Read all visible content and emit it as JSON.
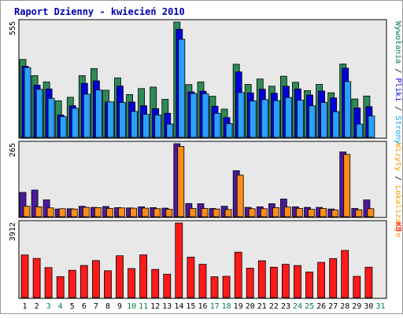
{
  "chart_data": {
    "type": "bar",
    "title": "Raport Dzienny -  kwiecień 2010",
    "categories": [
      "1",
      "2",
      "3",
      "4",
      "5",
      "6",
      "7",
      "8",
      "9",
      "10",
      "11",
      "12",
      "13",
      "14",
      "15",
      "16",
      "17",
      "18",
      "19",
      "20",
      "21",
      "22",
      "23",
      "24",
      "25",
      "26",
      "27",
      "28",
      "29",
      "30",
      "31"
    ],
    "weekend_days": [
      "3",
      "4",
      "10",
      "11",
      "17",
      "18",
      "24",
      "25",
      "31"
    ],
    "panels": [
      {
        "id": "top",
        "ymax_label": "555",
        "ylim": [
          0,
          555
        ],
        "legend": [
          {
            "text": "Wywołania",
            "color": "#008040"
          },
          {
            "text": " / ",
            "color": "#000000"
          },
          {
            "text": "Pliki",
            "color": "#0000ff"
          },
          {
            "text": " / ",
            "color": "#000000"
          },
          {
            "text": "Strony",
            "color": "#00a0ff"
          }
        ],
        "series": [
          {
            "name": "Wywołania",
            "color": "#2e8b57",
            "values": [
              375,
              297,
              267,
              176,
              193,
              297,
              331,
              227,
              286,
              206,
              235,
              242,
              183,
              555,
              254,
              267,
              198,
              136,
              352,
              255,
              281,
              246,
              294,
              265,
              225,
              255,
              215,
              353,
              185,
              199,
              0
            ]
          },
          {
            "name": "Pliki",
            "color": "#0000dd",
            "values": [
              342,
              251,
              233,
              108,
              152,
              260,
              272,
              170,
              247,
              170,
              152,
              138,
              116,
              520,
              219,
              222,
              150,
              95,
              315,
              214,
              232,
              212,
              246,
              233,
              204,
              223,
              190,
              333,
              142,
              148,
              0
            ]
          },
          {
            "name": "Strony",
            "color": "#2aa0ff",
            "values": [
              336,
              231,
              188,
              100,
              140,
              208,
              228,
              171,
              168,
              125,
              111,
              108,
              64,
              472,
              211,
              210,
              116,
              66,
              216,
              175,
              182,
              177,
              192,
              179,
              152,
              168,
              124,
              269,
              64,
              103,
              0
            ]
          }
        ]
      },
      {
        "id": "middle",
        "ymax_label": "265",
        "ylim": [
          0,
          265
        ],
        "legend": [
          {
            "text": "Wizyty",
            "color": "#ff9a00"
          },
          {
            "text": " / ",
            "color": "#000000"
          },
          {
            "text": "Lokalizacje",
            "color": "#ff9a00"
          }
        ],
        "series": [
          {
            "name": "Wizyty",
            "color": "#4b1a9a",
            "values": [
              88,
              97,
              61,
              28,
              29,
              38,
              34,
              37,
              33,
              32,
              36,
              33,
              31,
              265,
              48,
              47,
              30,
              38,
              167,
              34,
              36,
              47,
              64,
              36,
              34,
              34,
              28,
              235,
              30,
              61,
              0
            ]
          },
          {
            "name": "Lokalizacje",
            "color": "#ff8c1a",
            "values": [
              38,
              36,
              32,
              29,
              28,
              34,
              33,
              30,
              32,
              31,
              31,
              29,
              27,
              255,
              30,
              30,
              28,
              26,
              151,
              29,
              29,
              33,
              35,
              30,
              27,
              30,
              24,
              226,
              25,
              29,
              0
            ]
          }
        ]
      },
      {
        "id": "bottom",
        "ymax_label": "3912",
        "ylim": [
          0,
          3912
        ],
        "legend": [
          {
            "text": "KB",
            "color": "#ff0000"
          }
        ],
        "series": [
          {
            "name": "KB",
            "color": "#ff1a1a",
            "values": [
              2235,
              2055,
              1575,
              1100,
              1435,
              1685,
              1942,
              1408,
              2195,
              1525,
              2240,
              1480,
              1228,
              3912,
              2120,
              1745,
              1090,
              1118,
              2380,
              1545,
              1932,
              1595,
              1745,
              1680,
              1342,
              1850,
              2048,
              2475,
              1110,
              1595,
              0
            ]
          }
        ]
      }
    ]
  }
}
